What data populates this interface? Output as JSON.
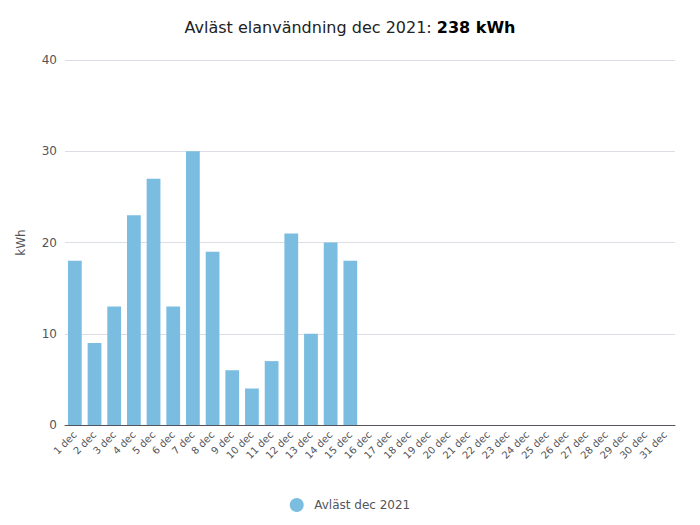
{
  "chart_data": {
    "type": "bar",
    "title": "Avläst elanvändning dec 2021: 238 kWh",
    "ylabel": "kWh",
    "categories": [
      "1 dec",
      "2 dec",
      "3 dec",
      "4 dec",
      "5 dec",
      "6 dec",
      "7 dec",
      "8 dec",
      "9 dec",
      "10 dec",
      "11 dec",
      "12 dec",
      "13 dec",
      "14 dec",
      "15 dec",
      "16 dec",
      "17 dec",
      "18 dec",
      "19 dec",
      "20 dec",
      "21 dec",
      "22 dec",
      "23 dec",
      "24 dec",
      "25 dec",
      "26 dec",
      "27 dec",
      "28 dec",
      "29 dec",
      "30 dec",
      "31 dec"
    ],
    "series": [
      {
        "name": "Avläst dec 2021",
        "color": "#7bbde0",
        "values": [
          18,
          9,
          13,
          23,
          27,
          13,
          30,
          19,
          6,
          4,
          7,
          21,
          10,
          20,
          18,
          0,
          0,
          0,
          0,
          0,
          0,
          0,
          0,
          0,
          0,
          0,
          0,
          0,
          0,
          0,
          0
        ]
      }
    ],
    "ylim": [
      0,
      40
    ],
    "yticks": [
      0,
      10,
      20,
      30,
      40
    ],
    "grid": true,
    "legend": "bottom"
  }
}
